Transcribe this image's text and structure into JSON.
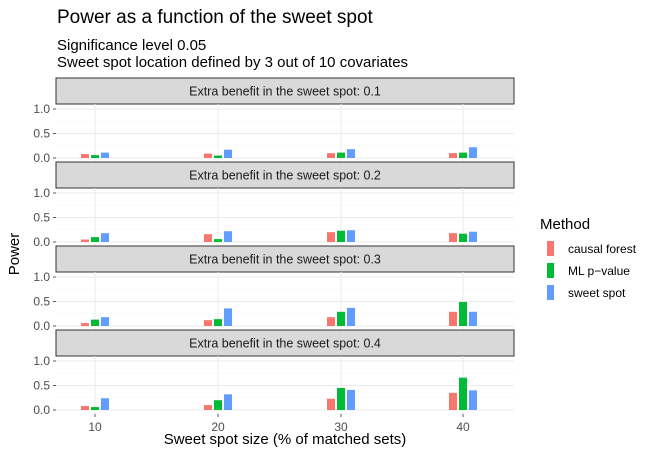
{
  "chart_data": {
    "type": "bar",
    "title": "Power as a function of the sweet spot",
    "subtitle_lines": [
      "Significance level 0.05",
      "Sweet spot location defined by 3 out of 10 covariates"
    ],
    "xlabel": "Sweet spot size (% of matched sets)",
    "ylabel": "Power",
    "categories": [
      "10",
      "20",
      "30",
      "40"
    ],
    "ylim": [
      0,
      1
    ],
    "yticks": [
      "0.0",
      "0.5",
      "1.0"
    ],
    "grid": true,
    "legend": {
      "title": "Method",
      "position": "right",
      "entries": [
        "causal forest",
        "ML p−value",
        "sweet spot"
      ]
    },
    "colors": {
      "causal forest": "#F8766D",
      "ML p−value": "#00BA38",
      "sweet spot": "#619CFF",
      "strip_fill": "#D9D9D9",
      "grid": "#EBEBEB"
    },
    "facets": [
      {
        "label": "Extra benefit in the sweet spot:  0.1",
        "series": [
          {
            "name": "causal forest",
            "values": [
              0.08,
              0.09,
              0.1,
              0.1
            ]
          },
          {
            "name": "ML p−value",
            "values": [
              0.06,
              0.05,
              0.11,
              0.11
            ]
          },
          {
            "name": "sweet spot",
            "values": [
              0.11,
              0.17,
              0.18,
              0.22
            ]
          }
        ]
      },
      {
        "label": "Extra benefit in the sweet spot:  0.2",
        "series": [
          {
            "name": "causal forest",
            "values": [
              0.05,
              0.16,
              0.2,
              0.18
            ]
          },
          {
            "name": "ML p−value",
            "values": [
              0.1,
              0.06,
              0.23,
              0.17
            ]
          },
          {
            "name": "sweet spot",
            "values": [
              0.18,
              0.22,
              0.24,
              0.21
            ]
          }
        ]
      },
      {
        "label": "Extra benefit in the sweet spot:  0.3",
        "series": [
          {
            "name": "causal forest",
            "values": [
              0.06,
              0.12,
              0.18,
              0.29
            ]
          },
          {
            "name": "ML p−value",
            "values": [
              0.13,
              0.14,
              0.29,
              0.49
            ]
          },
          {
            "name": "sweet spot",
            "values": [
              0.18,
              0.36,
              0.37,
              0.29
            ]
          }
        ]
      },
      {
        "label": "Extra benefit in the sweet spot:  0.4",
        "series": [
          {
            "name": "causal forest",
            "values": [
              0.08,
              0.1,
              0.23,
              0.35
            ]
          },
          {
            "name": "ML p−value",
            "values": [
              0.06,
              0.2,
              0.45,
              0.66
            ]
          },
          {
            "name": "sweet spot",
            "values": [
              0.24,
              0.32,
              0.41,
              0.4
            ]
          }
        ]
      }
    ]
  }
}
